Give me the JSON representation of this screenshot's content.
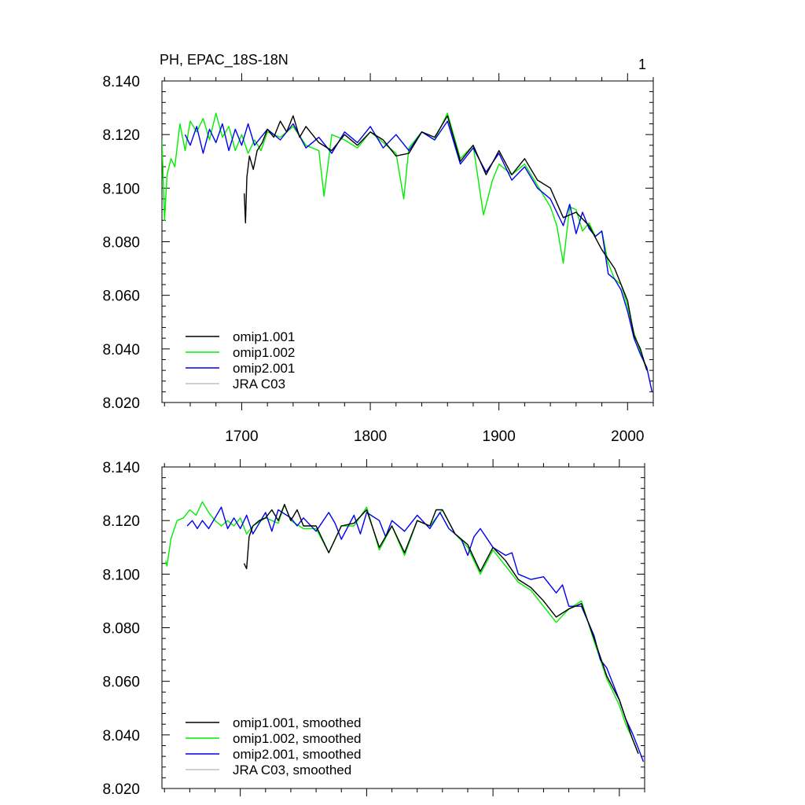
{
  "figure": {
    "title_left": "PH, EPAC_18S-18N",
    "title_right": "1"
  },
  "chart_data": [
    {
      "type": "line",
      "ylim": [
        8.02,
        8.14
      ],
      "xlim": [
        1638,
        2020
      ],
      "y_ticks": [
        "8.140",
        "8.120",
        "8.100",
        "8.080",
        "8.060",
        "8.040",
        "8.020"
      ],
      "x_ticks": [
        "1700",
        "1800",
        "1900",
        "2000"
      ],
      "grid": false,
      "legend": "bottom-left",
      "series": [
        {
          "name": "omip1.001",
          "color": "#000000",
          "x": [
            1702,
            1703,
            1704,
            1706,
            1709,
            1712,
            1716,
            1720,
            1725,
            1730,
            1735,
            1740,
            1745,
            1750,
            1760,
            1770,
            1780,
            1790,
            1800,
            1810,
            1820,
            1830,
            1840,
            1850,
            1860,
            1870,
            1880,
            1890,
            1900,
            1910,
            1920,
            1930,
            1940,
            1950,
            1960,
            1970,
            1980,
            1990,
            2000,
            2005,
            2010,
            2015
          ],
          "y": [
            8.098,
            8.087,
            8.104,
            8.112,
            8.107,
            8.114,
            8.117,
            8.122,
            8.119,
            8.125,
            8.121,
            8.127,
            8.119,
            8.123,
            8.117,
            8.114,
            8.12,
            8.116,
            8.121,
            8.118,
            8.112,
            8.113,
            8.121,
            8.119,
            8.127,
            8.11,
            8.116,
            8.105,
            8.114,
            8.105,
            8.111,
            8.103,
            8.1,
            8.089,
            8.091,
            8.086,
            8.077,
            8.07,
            8.058,
            8.045,
            8.04,
            8.032
          ]
        },
        {
          "name": "omip1.002",
          "color": "#00ee00",
          "x": [
            1638,
            1640,
            1642,
            1645,
            1648,
            1652,
            1656,
            1660,
            1665,
            1670,
            1675,
            1680,
            1685,
            1690,
            1695,
            1700,
            1705,
            1710,
            1715,
            1720,
            1730,
            1740,
            1750,
            1760,
            1764,
            1770,
            1780,
            1790,
            1800,
            1810,
            1820,
            1826,
            1830,
            1840,
            1850,
            1860,
            1870,
            1880,
            1888,
            1895,
            1900,
            1910,
            1920,
            1930,
            1940,
            1945,
            1950,
            1955,
            1960,
            1965,
            1970,
            1975,
            1980,
            1985,
            1990,
            1995,
            2000,
            2005,
            2010,
            2015
          ],
          "y": [
            8.118,
            8.088,
            8.105,
            8.111,
            8.108,
            8.124,
            8.114,
            8.125,
            8.121,
            8.126,
            8.118,
            8.128,
            8.119,
            8.123,
            8.114,
            8.12,
            8.113,
            8.118,
            8.114,
            8.121,
            8.119,
            8.123,
            8.116,
            8.114,
            8.097,
            8.12,
            8.118,
            8.115,
            8.121,
            8.117,
            8.113,
            8.096,
            8.115,
            8.121,
            8.118,
            8.128,
            8.111,
            8.116,
            8.09,
            8.103,
            8.109,
            8.105,
            8.109,
            8.101,
            8.093,
            8.086,
            8.072,
            8.093,
            8.092,
            8.084,
            8.087,
            8.082,
            8.084,
            8.072,
            8.066,
            8.064,
            8.056,
            8.046,
            8.039,
            8.032
          ]
        },
        {
          "name": "omip2.001",
          "color": "#0000ee",
          "x": [
            1656,
            1660,
            1665,
            1670,
            1675,
            1680,
            1685,
            1690,
            1695,
            1700,
            1705,
            1710,
            1715,
            1720,
            1730,
            1740,
            1750,
            1760,
            1770,
            1780,
            1790,
            1800,
            1810,
            1820,
            1830,
            1840,
            1850,
            1860,
            1870,
            1880,
            1890,
            1900,
            1910,
            1920,
            1930,
            1940,
            1950,
            1955,
            1960,
            1965,
            1970,
            1975,
            1980,
            1985,
            1990,
            1995,
            2000,
            2005,
            2010,
            2015,
            2019
          ],
          "y": [
            8.12,
            8.116,
            8.123,
            8.113,
            8.122,
            8.117,
            8.124,
            8.114,
            8.122,
            8.116,
            8.124,
            8.116,
            8.119,
            8.122,
            8.118,
            8.124,
            8.115,
            8.119,
            8.113,
            8.121,
            8.117,
            8.123,
            8.115,
            8.12,
            8.114,
            8.121,
            8.118,
            8.125,
            8.109,
            8.115,
            8.106,
            8.113,
            8.103,
            8.108,
            8.1,
            8.096,
            8.086,
            8.094,
            8.083,
            8.091,
            8.085,
            8.082,
            8.084,
            8.068,
            8.066,
            8.062,
            8.054,
            8.044,
            8.038,
            8.033,
            8.024
          ]
        },
        {
          "name": "JRA C03",
          "color": "#c0c0c0",
          "x": [],
          "y": []
        }
      ]
    },
    {
      "type": "line",
      "ylim": [
        8.02,
        8.14
      ],
      "xlim": [
        1638,
        2020
      ],
      "y_ticks": [
        "8.140",
        "8.120",
        "8.100",
        "8.080",
        "8.060",
        "8.040",
        "8.020"
      ],
      "grid": false,
      "legend": "bottom-left",
      "series": [
        {
          "name": "omip1.001, smoothed",
          "color": "#000000",
          "x": [
            1703,
            1705,
            1707,
            1710,
            1715,
            1720,
            1725,
            1730,
            1735,
            1740,
            1745,
            1750,
            1760,
            1770,
            1780,
            1790,
            1800,
            1810,
            1820,
            1830,
            1840,
            1850,
            1855,
            1860,
            1870,
            1880,
            1890,
            1900,
            1910,
            1920,
            1930,
            1940,
            1950,
            1960,
            1970,
            1980,
            1990,
            2000,
            2005,
            2010,
            2015
          ],
          "y": [
            8.104,
            8.102,
            8.114,
            8.118,
            8.12,
            8.121,
            8.124,
            8.12,
            8.126,
            8.12,
            8.124,
            8.118,
            8.118,
            8.108,
            8.118,
            8.119,
            8.124,
            8.11,
            8.118,
            8.108,
            8.12,
            8.118,
            8.124,
            8.124,
            8.115,
            8.111,
            8.101,
            8.11,
            8.105,
            8.098,
            8.095,
            8.09,
            8.084,
            8.087,
            8.089,
            8.076,
            8.062,
            8.053,
            8.046,
            8.039,
            8.033
          ]
        },
        {
          "name": "omip1.002, smoothed",
          "color": "#00ee00",
          "x": [
            1641,
            1642,
            1645,
            1650,
            1655,
            1660,
            1665,
            1670,
            1675,
            1680,
            1685,
            1690,
            1695,
            1700,
            1705,
            1710,
            1720,
            1730,
            1735,
            1740,
            1750,
            1760,
            1770,
            1780,
            1790,
            1800,
            1810,
            1820,
            1830,
            1840,
            1850,
            1860,
            1870,
            1880,
            1890,
            1900,
            1910,
            1920,
            1930,
            1940,
            1950,
            1960,
            1970,
            1980,
            1990,
            2000,
            2005,
            2010,
            2015
          ],
          "y": [
            8.105,
            8.103,
            8.113,
            8.12,
            8.121,
            8.124,
            8.122,
            8.127,
            8.123,
            8.12,
            8.118,
            8.12,
            8.118,
            8.121,
            8.115,
            8.118,
            8.121,
            8.119,
            8.126,
            8.12,
            8.117,
            8.117,
            8.108,
            8.118,
            8.118,
            8.125,
            8.109,
            8.118,
            8.107,
            8.12,
            8.118,
            8.124,
            8.115,
            8.11,
            8.1,
            8.109,
            8.103,
            8.097,
            8.094,
            8.088,
            8.082,
            8.087,
            8.09,
            8.075,
            8.061,
            8.051,
            8.044,
            8.039,
            8.033
          ]
        },
        {
          "name": "omip2.001, smoothed",
          "color": "#0000ee",
          "x": [
            1658,
            1662,
            1666,
            1670,
            1675,
            1680,
            1685,
            1690,
            1695,
            1700,
            1705,
            1710,
            1720,
            1725,
            1730,
            1740,
            1745,
            1750,
            1760,
            1770,
            1775,
            1780,
            1790,
            1795,
            1800,
            1810,
            1815,
            1820,
            1830,
            1840,
            1850,
            1858,
            1865,
            1875,
            1880,
            1885,
            1890,
            1900,
            1910,
            1915,
            1920,
            1930,
            1940,
            1950,
            1955,
            1960,
            1970,
            1980,
            1985,
            1990,
            2000,
            2005,
            2010,
            2015,
            2019
          ],
          "y": [
            8.118,
            8.12,
            8.117,
            8.12,
            8.117,
            8.121,
            8.125,
            8.117,
            8.121,
            8.117,
            8.122,
            8.115,
            8.123,
            8.116,
            8.124,
            8.121,
            8.118,
            8.121,
            8.116,
            8.123,
            8.119,
            8.113,
            8.122,
            8.115,
            8.123,
            8.12,
            8.114,
            8.12,
            8.116,
            8.122,
            8.117,
            8.123,
            8.117,
            8.113,
            8.107,
            8.114,
            8.117,
            8.11,
            8.107,
            8.108,
            8.1,
            8.098,
            8.099,
            8.093,
            8.096,
            8.088,
            8.088,
            8.077,
            8.068,
            8.065,
            8.053,
            8.046,
            8.041,
            8.035,
            8.03
          ]
        },
        {
          "name": "JRA C03, smoothed",
          "color": "#c0c0c0",
          "x": [],
          "y": []
        }
      ]
    }
  ]
}
